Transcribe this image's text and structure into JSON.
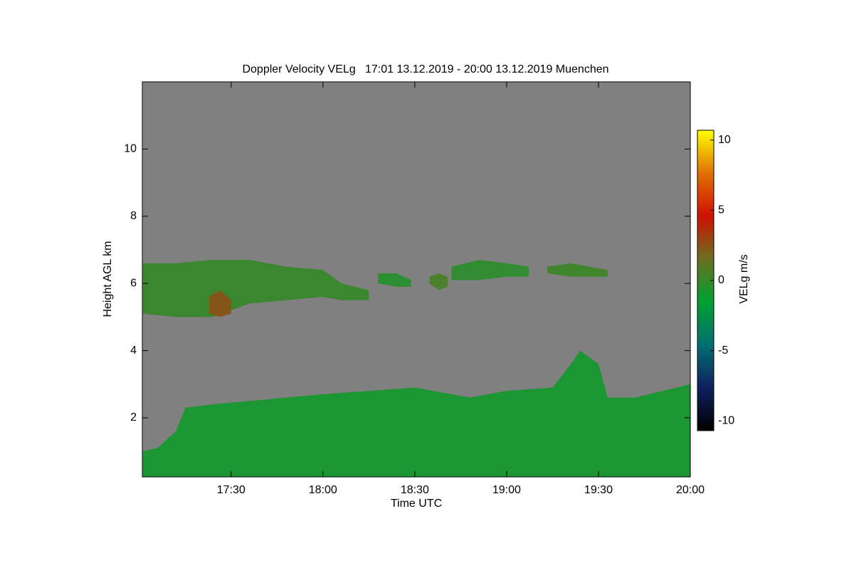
{
  "chart_data": {
    "type": "heatmap",
    "title": "Doppler Velocity VELg   17:01 13.12.2019 - 20:00 13.12.2019 Muenchen",
    "xlabel": "Time UTC",
    "ylabel": "Height AGL km",
    "colorbar_label": "VELg m/s",
    "xlim": [
      17.0167,
      20.0
    ],
    "ylim": [
      0.24,
      12.0
    ],
    "clim": [
      -10.7,
      10.7
    ],
    "xticks": [
      {
        "value": 17.5,
        "label": "17:30"
      },
      {
        "value": 18.0,
        "label": "18:00"
      },
      {
        "value": 18.5,
        "label": "18:30"
      },
      {
        "value": 19.0,
        "label": "19:00"
      },
      {
        "value": 19.5,
        "label": "19:30"
      },
      {
        "value": 20.0,
        "label": "20:00"
      }
    ],
    "yticks": [
      2,
      4,
      6,
      8,
      10
    ],
    "cticks": [
      -10,
      -5,
      0,
      5,
      10
    ],
    "background": "#808080",
    "colormap": [
      "#000000",
      "#102060",
      "#007070",
      "#00a030",
      "#6a7020",
      "#d01000",
      "#e07000",
      "#ffff00"
    ],
    "regions": [
      {
        "x": [
          17.02,
          17.1,
          17.2,
          17.25,
          17.4,
          17.6,
          18.0,
          18.5,
          18.8,
          19.0,
          19.25,
          19.35,
          19.4,
          19.5,
          19.55,
          19.7,
          20.0
        ],
        "top": [
          1.0,
          1.1,
          1.6,
          2.3,
          2.4,
          2.5,
          2.7,
          2.9,
          2.6,
          2.8,
          2.9,
          3.6,
          4.0,
          3.6,
          2.6,
          2.6,
          3.0
        ],
        "base": [
          0.24,
          0.24,
          0.24,
          0.24,
          0.24,
          0.24,
          0.24,
          0.24,
          0.24,
          0.24,
          0.24,
          0.24,
          0.24,
          0.24,
          0.24,
          0.24,
          0.24
        ],
        "velocity": -1
      },
      {
        "x": [
          17.02,
          17.2,
          17.4,
          17.6,
          17.8,
          18.0,
          18.1,
          18.25
        ],
        "top": [
          6.6,
          6.6,
          6.7,
          6.7,
          6.5,
          6.4,
          6.0,
          5.8
        ],
        "base": [
          5.1,
          5.0,
          5.0,
          5.4,
          5.5,
          5.6,
          5.5,
          5.5
        ],
        "velocity": 0
      },
      {
        "x": [
          17.38,
          17.44,
          17.5
        ],
        "top": [
          5.6,
          5.8,
          5.5
        ],
        "base": [
          5.1,
          5.0,
          5.1
        ],
        "velocity": 2.5
      },
      {
        "x": [
          18.3,
          18.4,
          18.48
        ],
        "top": [
          6.3,
          6.3,
          6.1
        ],
        "base": [
          6.0,
          5.9,
          5.9
        ],
        "velocity": -0.5
      },
      {
        "x": [
          18.58,
          18.63,
          18.68
        ],
        "top": [
          6.2,
          6.3,
          6.2
        ],
        "base": [
          6.0,
          5.8,
          5.9
        ],
        "velocity": 0.5
      },
      {
        "x": [
          18.7,
          18.85,
          19.0,
          19.12
        ],
        "top": [
          6.5,
          6.7,
          6.6,
          6.5
        ],
        "base": [
          6.1,
          6.1,
          6.2,
          6.2
        ],
        "velocity": -0.3
      },
      {
        "x": [
          19.22,
          19.35,
          19.45,
          19.55
        ],
        "top": [
          6.5,
          6.6,
          6.5,
          6.4
        ],
        "base": [
          6.3,
          6.2,
          6.2,
          6.2
        ],
        "velocity": 0.2
      }
    ]
  }
}
